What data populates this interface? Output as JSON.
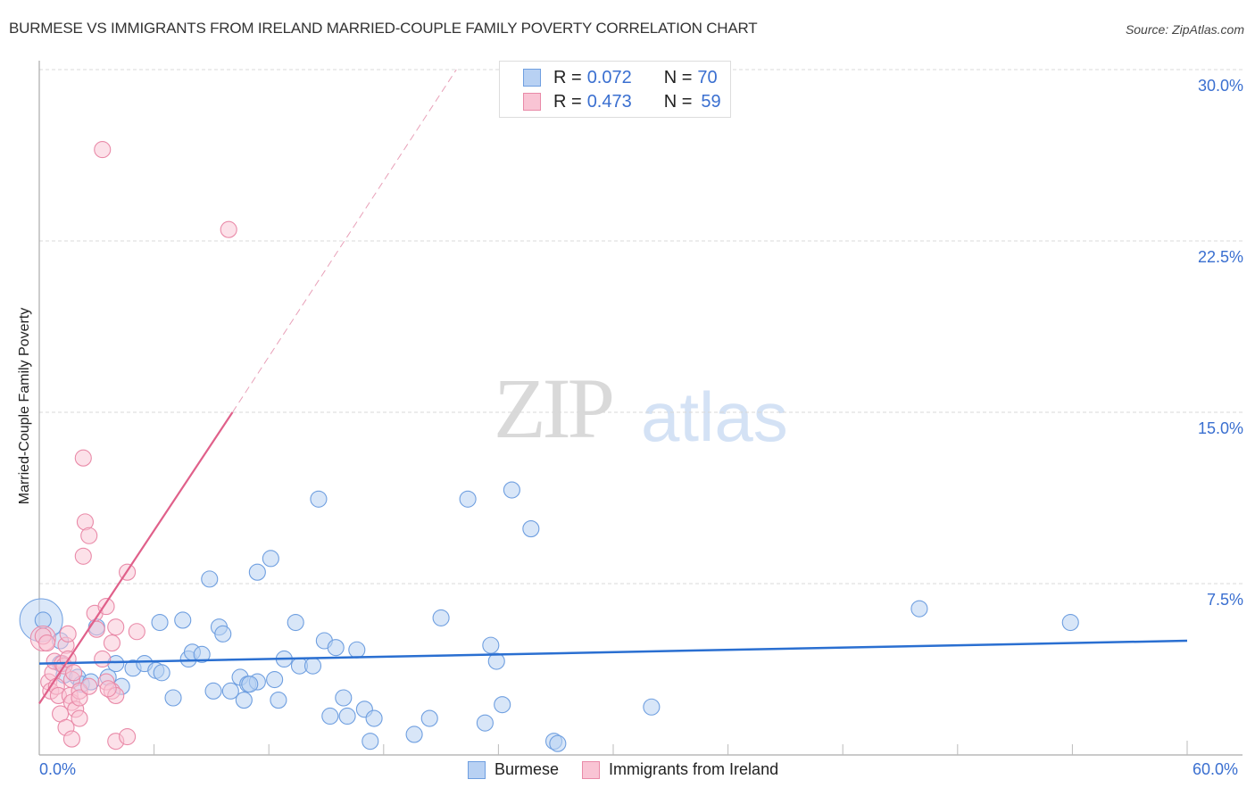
{
  "header": {
    "title": "BURMESE VS IMMIGRANTS FROM IRELAND MARRIED-COUPLE FAMILY POVERTY CORRELATION CHART",
    "source": "Source: ZipAtlas.com"
  },
  "watermark": {
    "zip": "ZIP",
    "atlas": "atlas"
  },
  "legend": {
    "rows": [
      {
        "r_label": "R = ",
        "r_value": "0.072",
        "n_label": "N = ",
        "n_value": "70",
        "color": "#b8d1f3",
        "border": "#6f9fe0"
      },
      {
        "r_label": "R = ",
        "r_value": "0.473",
        "n_label": "N = ",
        "n_value": "59",
        "color": "#f9c4d4",
        "border": "#e98aa8"
      }
    ]
  },
  "bottom_legend": {
    "items": [
      {
        "label": "Burmese",
        "color": "#b8d1f3",
        "border": "#6f9fe0"
      },
      {
        "label": "Immigrants from Ireland",
        "color": "#f9c4d4",
        "border": "#e98aa8"
      }
    ]
  },
  "axes": {
    "y_label": "Married-Couple Family Poverty",
    "y_ticks": [
      "30.0%",
      "22.5%",
      "15.0%",
      "7.5%"
    ],
    "x_ticks": [
      "0.0%",
      "60.0%"
    ]
  },
  "chart_data": {
    "type": "scatter",
    "title": "BURMESE VS IMMIGRANTS FROM IRELAND MARRIED-COUPLE FAMILY POVERTY CORRELATION CHART",
    "xlabel": "",
    "ylabel": "Married-Couple Family Poverty",
    "xlim": [
      0,
      60
    ],
    "ylim": [
      0,
      30
    ],
    "x_tick_labels": [
      "0.0%",
      "60.0%"
    ],
    "y_tick_labels": [
      "7.5%",
      "15.0%",
      "22.5%",
      "30.0%"
    ],
    "grid": true,
    "legend_position": "top-center",
    "series": [
      {
        "name": "Burmese",
        "color": "#6f9fe0",
        "R": 0.072,
        "N": 70,
        "trend": {
          "x": [
            0,
            60
          ],
          "y": [
            4.0,
            5.0
          ]
        },
        "points": [
          [
            0.2,
            5.9
          ],
          [
            1.1,
            5.0
          ],
          [
            1.1,
            4.0
          ],
          [
            1.3,
            3.5
          ],
          [
            2.0,
            3.4
          ],
          [
            2.2,
            3.1
          ],
          [
            2.7,
            3.2
          ],
          [
            3.6,
            3.4
          ],
          [
            3.0,
            5.6
          ],
          [
            4.0,
            4.0
          ],
          [
            4.3,
            3.0
          ],
          [
            4.9,
            3.8
          ],
          [
            5.5,
            4.0
          ],
          [
            6.1,
            3.7
          ],
          [
            6.4,
            3.6
          ],
          [
            7.0,
            2.5
          ],
          [
            6.3,
            5.8
          ],
          [
            7.5,
            5.9
          ],
          [
            7.8,
            4.2
          ],
          [
            8.0,
            4.5
          ],
          [
            8.5,
            4.4
          ],
          [
            8.9,
            7.7
          ],
          [
            9.1,
            2.8
          ],
          [
            9.4,
            5.6
          ],
          [
            9.6,
            5.3
          ],
          [
            10.0,
            2.8
          ],
          [
            10.5,
            3.4
          ],
          [
            10.7,
            2.4
          ],
          [
            10.9,
            3.1
          ],
          [
            11.4,
            3.2
          ],
          [
            11.0,
            3.1
          ],
          [
            11.4,
            8.0
          ],
          [
            12.1,
            8.6
          ],
          [
            12.3,
            3.3
          ],
          [
            12.5,
            2.4
          ],
          [
            12.8,
            4.2
          ],
          [
            13.4,
            5.8
          ],
          [
            13.6,
            3.9
          ],
          [
            14.3,
            3.9
          ],
          [
            14.6,
            11.2
          ],
          [
            14.9,
            5.0
          ],
          [
            15.2,
            1.7
          ],
          [
            15.5,
            4.7
          ],
          [
            15.9,
            2.5
          ],
          [
            16.1,
            1.7
          ],
          [
            16.6,
            4.6
          ],
          [
            17.0,
            2.0
          ],
          [
            17.3,
            0.6
          ],
          [
            17.5,
            1.6
          ],
          [
            19.6,
            0.9
          ],
          [
            20.4,
            1.6
          ],
          [
            21.0,
            6.0
          ],
          [
            22.4,
            11.2
          ],
          [
            23.3,
            1.4
          ],
          [
            23.6,
            4.8
          ],
          [
            23.9,
            4.1
          ],
          [
            24.2,
            2.2
          ],
          [
            24.7,
            11.6
          ],
          [
            25.7,
            9.9
          ],
          [
            26.9,
            0.6
          ],
          [
            27.1,
            0.5
          ],
          [
            32.0,
            2.1
          ],
          [
            46.0,
            6.4
          ],
          [
            53.9,
            5.8
          ]
        ]
      },
      {
        "name": "Immigrants from Ireland",
        "color": "#e98aa8",
        "R": 0.473,
        "N": 59,
        "trend": {
          "x": [
            0,
            10.1
          ],
          "y": [
            2.25,
            15.0
          ],
          "dashed_extension": {
            "x": [
              10.1,
              21.8
            ],
            "y": [
              15.0,
              30.0
            ]
          }
        },
        "points": [
          [
            0.2,
            5.2
          ],
          [
            0.4,
            4.9
          ],
          [
            0.5,
            3.2
          ],
          [
            0.6,
            2.8
          ],
          [
            0.7,
            3.6
          ],
          [
            0.8,
            4.1
          ],
          [
            0.9,
            3.0
          ],
          [
            1.0,
            2.6
          ],
          [
            1.1,
            1.8
          ],
          [
            1.2,
            4.0
          ],
          [
            1.3,
            3.9
          ],
          [
            1.4,
            4.8
          ],
          [
            1.5,
            4.2
          ],
          [
            1.6,
            2.6
          ],
          [
            1.7,
            3.3
          ],
          [
            1.5,
            5.3
          ],
          [
            1.4,
            1.2
          ],
          [
            1.7,
            0.7
          ],
          [
            1.7,
            2.3
          ],
          [
            1.9,
            2.0
          ],
          [
            2.1,
            2.8
          ],
          [
            2.1,
            2.5
          ],
          [
            2.1,
            1.6
          ],
          [
            2.3,
            13.0
          ],
          [
            2.4,
            10.2
          ],
          [
            2.6,
            9.6
          ],
          [
            2.3,
            8.7
          ],
          [
            2.9,
            6.2
          ],
          [
            3.0,
            5.5
          ],
          [
            3.3,
            4.2
          ],
          [
            3.5,
            6.5
          ],
          [
            3.5,
            3.2
          ],
          [
            3.8,
            2.8
          ],
          [
            3.8,
            4.9
          ],
          [
            4.0,
            2.6
          ],
          [
            4.0,
            5.6
          ],
          [
            4.0,
            0.6
          ],
          [
            4.6,
            0.8
          ],
          [
            4.6,
            8.0
          ],
          [
            5.1,
            5.4
          ],
          [
            3.3,
            26.5
          ],
          [
            9.9,
            23.0
          ],
          [
            1.8,
            3.6
          ],
          [
            2.6,
            3.0
          ],
          [
            3.6,
            2.9
          ]
        ]
      }
    ]
  }
}
